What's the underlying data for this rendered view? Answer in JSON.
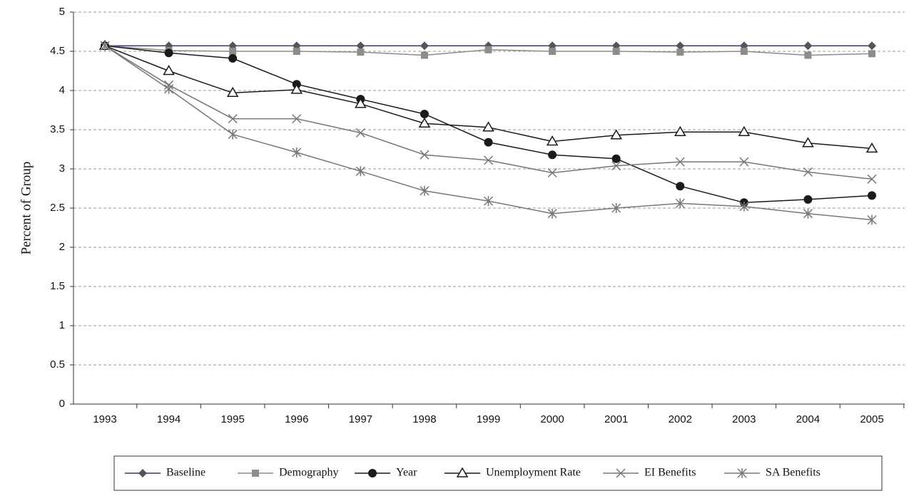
{
  "chart_data": {
    "type": "line",
    "y_label": "Percent of Group",
    "categories": [
      "1993",
      "1994",
      "1995",
      "1996",
      "1997",
      "1998",
      "1999",
      "2000",
      "2001",
      "2002",
      "2003",
      "2004",
      "2005"
    ],
    "ylim": [
      0,
      5
    ],
    "yticks": [
      0,
      0.5,
      1,
      1.5,
      2,
      2.5,
      3,
      3.5,
      4,
      4.5,
      5
    ],
    "grid": true,
    "legend": "bottom",
    "series": [
      {
        "name": "Baseline",
        "color": "#333399",
        "marker": "diamond",
        "values": [
          4.57,
          4.57,
          4.57,
          4.57,
          4.57,
          4.57,
          4.57,
          4.57,
          4.57,
          4.57,
          4.57,
          4.57,
          4.57
        ]
      },
      {
        "name": "Demography",
        "color": "#8c8c8c",
        "marker": "square",
        "values": [
          4.57,
          4.51,
          4.5,
          4.5,
          4.49,
          4.45,
          4.52,
          4.5,
          4.5,
          4.49,
          4.5,
          4.45,
          4.47
        ]
      },
      {
        "name": "Year",
        "color": "#1a1a1a",
        "marker": "circle",
        "values": [
          4.57,
          4.48,
          4.41,
          4.08,
          3.89,
          3.7,
          3.34,
          3.18,
          3.13,
          2.78,
          2.57,
          2.61,
          2.66
        ]
      },
      {
        "name": "Unemployment Rate",
        "color": "#1a1a1a",
        "marker": "triangle",
        "values": [
          4.57,
          4.25,
          3.97,
          4.01,
          3.83,
          3.58,
          3.53,
          3.35,
          3.43,
          3.47,
          3.47,
          3.33,
          3.26
        ]
      },
      {
        "name": "EI Benefits",
        "color": "#777777",
        "marker": "x",
        "values": [
          4.57,
          4.07,
          3.64,
          3.64,
          3.46,
          3.18,
          3.11,
          2.95,
          3.04,
          3.09,
          3.09,
          2.96,
          2.87
        ]
      },
      {
        "name": "SA Benefits",
        "color": "#777777",
        "marker": "star",
        "values": [
          4.57,
          4.02,
          3.44,
          3.21,
          2.97,
          2.72,
          2.59,
          2.43,
          2.5,
          2.56,
          2.52,
          2.43,
          2.35
        ]
      }
    ]
  }
}
